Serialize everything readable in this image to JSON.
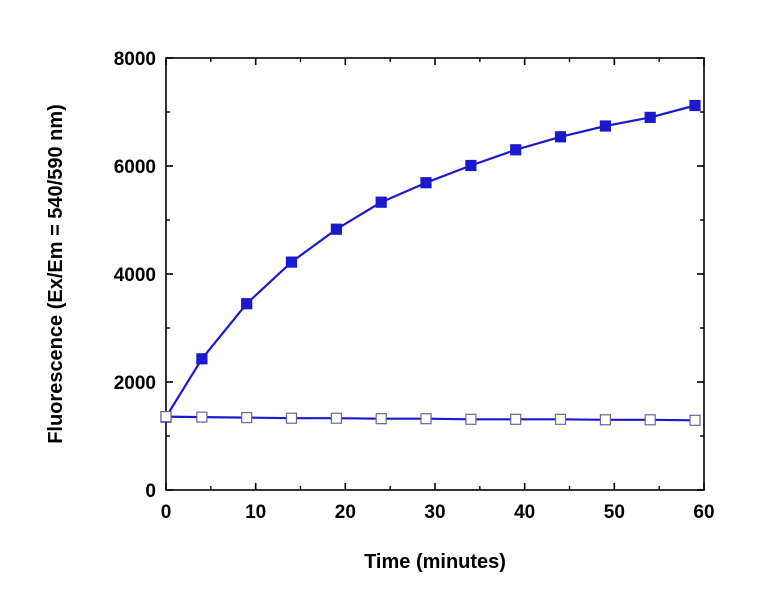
{
  "chart_data": {
    "type": "line",
    "xlabel": "Time (minutes)",
    "ylabel": "Fluorescence (Ex/Em = 540/590 nm)",
    "xlim": [
      0,
      60
    ],
    "ylim": [
      0,
      8000
    ],
    "xticks": [
      0,
      10,
      20,
      30,
      40,
      50,
      60
    ],
    "yticks": [
      0,
      2000,
      4000,
      6000,
      8000
    ],
    "grid": false,
    "legend": "none",
    "x": [
      0,
      4,
      9,
      14,
      19,
      24,
      29,
      34,
      39,
      44,
      49,
      54,
      59
    ],
    "series": [
      {
        "marker": "filled-square",
        "color": "#1a1acc",
        "values": [
          1350,
          2430,
          3450,
          4220,
          4830,
          5330,
          5690,
          6010,
          6300,
          6540,
          6740,
          6900,
          7120
        ]
      },
      {
        "marker": "open-square",
        "color": "#1a1acc",
        "values": [
          1360,
          1350,
          1340,
          1330,
          1330,
          1320,
          1320,
          1310,
          1310,
          1310,
          1300,
          1300,
          1290
        ]
      }
    ]
  }
}
